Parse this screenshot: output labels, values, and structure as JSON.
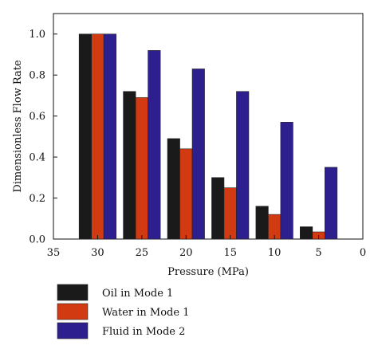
{
  "chart_data": {
    "type": "bar",
    "title": "",
    "xlabel": "Pressure (MPa)",
    "ylabel": "Dimensionless Flow Rate",
    "x_ticks": [
      35,
      30,
      25,
      20,
      15,
      10,
      5,
      0
    ],
    "x_reversed": true,
    "xlim": [
      35,
      0
    ],
    "ylim": [
      0,
      1.1
    ],
    "y_ticks": [
      "0.0",
      "0.2",
      "0.4",
      "0.6",
      "0.8",
      "1.0"
    ],
    "categories": [
      30,
      25,
      20,
      15,
      10,
      5
    ],
    "series": [
      {
        "name": "Oil in Mode 1",
        "color": "#1a1a1a",
        "values": [
          1.0,
          0.72,
          0.49,
          0.3,
          0.16,
          0.06
        ]
      },
      {
        "name": "Water in Mode 1",
        "color": "#d23a12",
        "values": [
          1.0,
          0.69,
          0.44,
          0.25,
          0.12,
          0.035
        ]
      },
      {
        "name": "Fluid in Mode 2",
        "color": "#2e1f8f",
        "values": [
          1.0,
          0.92,
          0.83,
          0.72,
          0.57,
          0.35
        ]
      }
    ],
    "grid": false,
    "legend_position": "bottom"
  }
}
